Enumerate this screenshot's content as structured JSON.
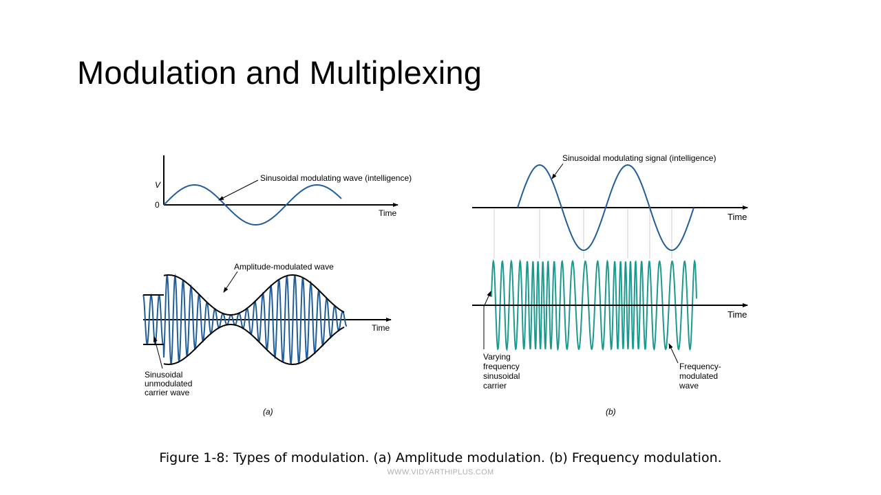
{
  "slide": {
    "title": "Modulation and Multiplexing",
    "caption": "Figure 1-8: Types of modulation. (a) Amplitude modulation. (b) Frequency modulation.",
    "watermark": "WWW.VIDYARTHIPLUS.COM"
  },
  "panel_a": {
    "label": "(a)",
    "v_axis_label": "V",
    "zero_label": "0",
    "time_label_top": "Time",
    "time_label_bottom": "Time",
    "modulating_label": "Sinusoidal modulating wave (intelligence)",
    "am_label": "Amplitude-modulated wave",
    "carrier_label_lines": [
      "Sinusoidal",
      "unmodulated",
      "carrier wave"
    ]
  },
  "panel_b": {
    "label": "(b)",
    "time_label_top": "Time",
    "time_label_bottom": "Time",
    "modulating_label": "Sinusoidal modulating signal (intelligence)",
    "varying_label_lines": [
      "Varying",
      "frequency",
      "sinusoidal",
      "carrier"
    ],
    "fm_label_lines": [
      "Frequency-",
      "modulated",
      "wave"
    ]
  },
  "colors": {
    "modulating_wave": "#1f5c99",
    "am_carrier": "#1f5c99",
    "fm_wave": "#1a9a8e",
    "axis": "#000000",
    "envelope": "#000000"
  }
}
